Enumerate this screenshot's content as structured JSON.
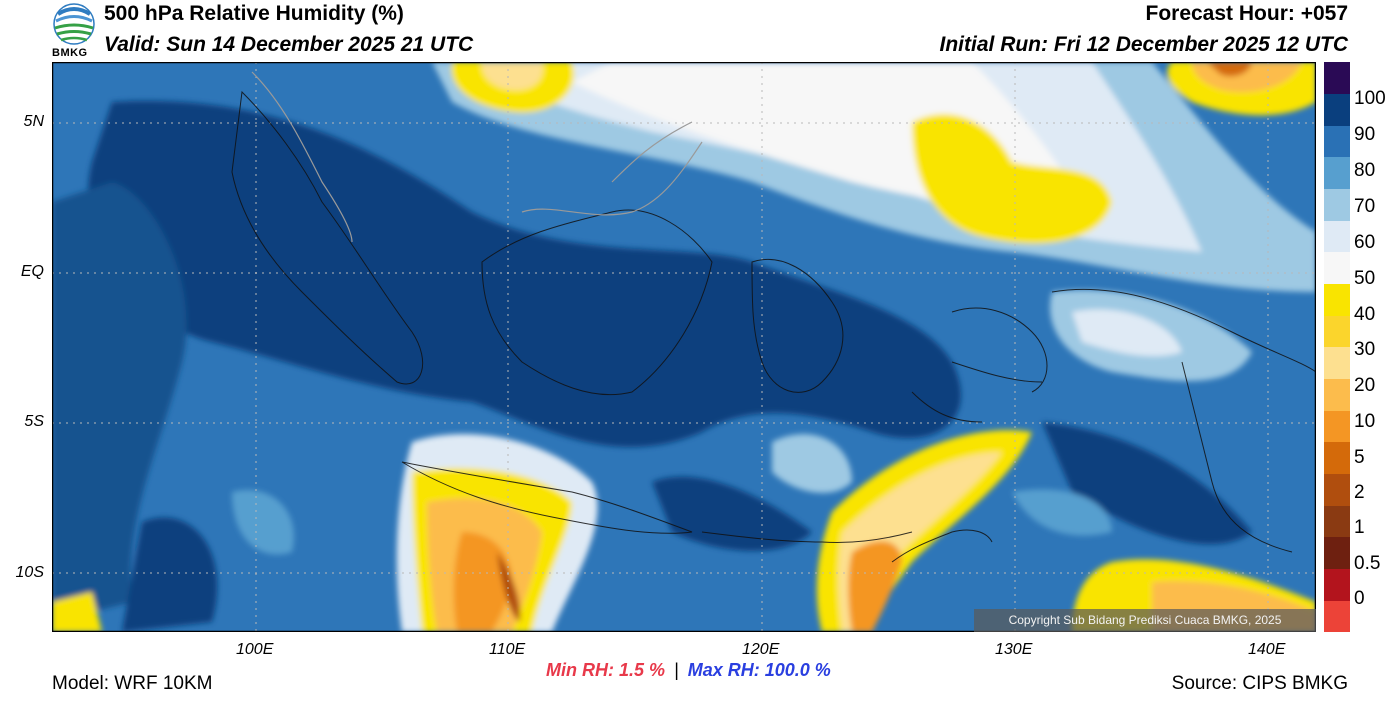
{
  "header": {
    "title": "500 hPa Relative Humidity (%)",
    "valid": "Valid: Sun 14 December 2025 21 UTC",
    "forecast_hour": "Forecast Hour: +057",
    "initial_run": "Initial Run: Fri 12 December 2025 12 UTC",
    "logo_text": "BMKG"
  },
  "map": {
    "lat_labels": [
      "5N",
      "EQ",
      "5S",
      "10S"
    ],
    "lon_labels": [
      "100E",
      "110E",
      "120E",
      "130E",
      "140E"
    ],
    "lon_range": [
      92,
      142
    ],
    "lat_range": [
      -12,
      7
    ]
  },
  "colorbar": {
    "labels": [
      "100",
      "90",
      "80",
      "70",
      "60",
      "50",
      "40",
      "30",
      "20",
      "10",
      "5",
      "2",
      "1",
      "0.5",
      "0"
    ],
    "colors": [
      "#ec4338",
      "#b3141d",
      "#6e2010",
      "#8a3a12",
      "#b04e0e",
      "#d46a0a",
      "#f49624",
      "#fcbc4c",
      "#fde090",
      "#fbd52c",
      "#f9e400",
      "#f7f7f7",
      "#dfeaf5",
      "#9ec9e3",
      "#579fcf",
      "#2a71b5",
      "#0a3f7e",
      "#2a0a55"
    ]
  },
  "stats": {
    "min_rh": "Min RH:   1.5 %",
    "separator": "|",
    "max_rh": "Max RH: 100.0 %"
  },
  "footer": {
    "model": "Model: WRF 10KM",
    "source": "Source: CIPS BMKG",
    "copyright": "Copyright Sub Bidang Prediksi Cuaca BMKG, 2025"
  }
}
